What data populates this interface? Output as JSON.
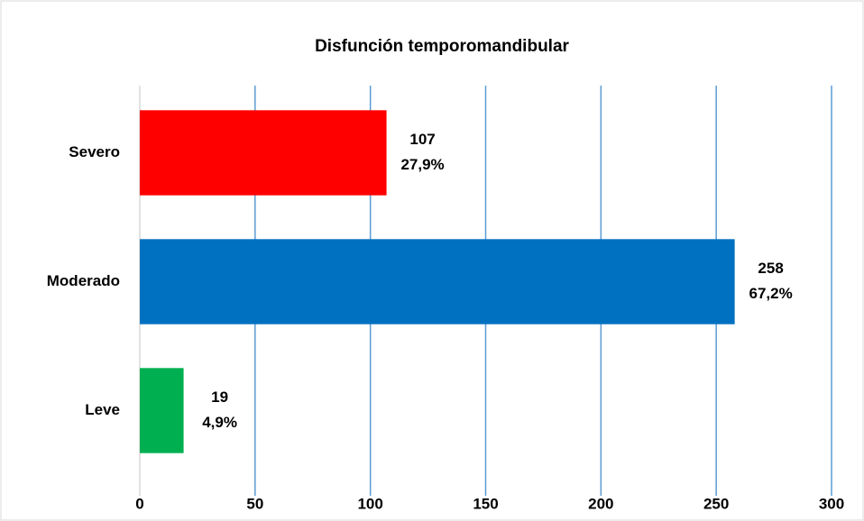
{
  "chart_data": {
    "type": "barh",
    "title": "Disfunción temporomandibular",
    "categories": [
      "Severo",
      "Moderado",
      "Leve"
    ],
    "values": [
      107,
      258,
      19
    ],
    "percent_labels": [
      "27,9%",
      "67,2%",
      "4,9%"
    ],
    "colors": [
      "#ff0000",
      "#0070c0",
      "#00b050"
    ],
    "xlim": [
      0,
      300
    ],
    "xticks": [
      0,
      50,
      100,
      150,
      200,
      250,
      300
    ],
    "grid": true,
    "grid_color": "#5b9bd5"
  }
}
